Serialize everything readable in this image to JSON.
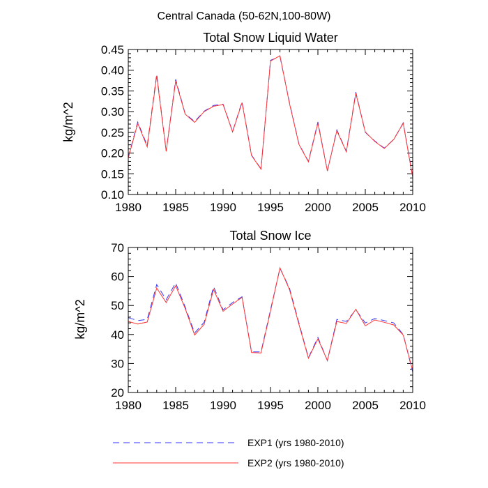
{
  "figure": {
    "suptitle": "Central Canada (50-62N,100-80W)"
  },
  "chart_data": [
    {
      "type": "line",
      "title": "Total Snow Liquid Water",
      "xlabel": "",
      "ylabel": "kg/m^2",
      "xlim": [
        1980,
        2010
      ],
      "ylim": [
        0.1,
        0.45
      ],
      "xticks": [
        "1980",
        "1985",
        "1990",
        "1995",
        "2000",
        "2005",
        "2010"
      ],
      "yticks": [
        "0.10",
        "0.15",
        "0.20",
        "0.25",
        "0.30",
        "0.35",
        "0.40",
        "0.45"
      ],
      "x": [
        1980,
        1981,
        1982,
        1983,
        1984,
        1985,
        1986,
        1987,
        1988,
        1989,
        1990,
        1991,
        1992,
        1993,
        1994,
        1995,
        1996,
        1997,
        1998,
        1999,
        2000,
        2001,
        2002,
        2003,
        2004,
        2005,
        2006,
        2007,
        2008,
        2009,
        2010
      ],
      "series": [
        {
          "name": "EXP1 (yrs 1980-2010)",
          "color": "#3333ff",
          "dash": "dashed",
          "values": [
            0.19,
            0.275,
            0.218,
            0.391,
            0.205,
            0.378,
            0.295,
            0.276,
            0.301,
            0.315,
            0.318,
            0.252,
            0.324,
            0.195,
            0.162,
            0.424,
            0.433,
            0.322,
            0.222,
            0.18,
            0.275,
            0.157,
            0.256,
            0.204,
            0.347,
            0.25,
            0.229,
            0.212,
            0.233,
            0.273,
            0.142
          ]
        },
        {
          "name": "EXP2 (yrs 1980-2010)",
          "color": "#ff3333",
          "dash": "solid",
          "values": [
            0.188,
            0.272,
            0.215,
            0.386,
            0.204,
            0.374,
            0.294,
            0.274,
            0.3,
            0.313,
            0.317,
            0.251,
            0.322,
            0.194,
            0.161,
            0.422,
            0.435,
            0.32,
            0.221,
            0.179,
            0.272,
            0.157,
            0.254,
            0.203,
            0.344,
            0.251,
            0.228,
            0.211,
            0.233,
            0.272,
            0.141
          ]
        }
      ]
    },
    {
      "type": "line",
      "title": "Total Snow Ice",
      "xlabel": "",
      "ylabel": "kg/m^2",
      "xlim": [
        1980,
        2010
      ],
      "ylim": [
        20,
        70
      ],
      "xticks": [
        "1980",
        "1985",
        "1990",
        "1995",
        "2000",
        "2005",
        "2010"
      ],
      "yticks": [
        "20",
        "30",
        "40",
        "50",
        "60",
        "70"
      ],
      "x": [
        1980,
        1981,
        1982,
        1983,
        1984,
        1985,
        1986,
        1987,
        1988,
        1989,
        1990,
        1991,
        1992,
        1993,
        1994,
        1995,
        1996,
        1997,
        1998,
        1999,
        2000,
        2001,
        2002,
        2003,
        2004,
        2005,
        2006,
        2007,
        2008,
        2009,
        2010
      ],
      "series": [
        {
          "name": "EXP1 (yrs 1980-2010)",
          "color": "#3333ff",
          "dash": "dashed",
          "values": [
            45.8,
            44.8,
            45.2,
            57.2,
            52.0,
            57.8,
            49.5,
            40.5,
            44.2,
            56.5,
            48.5,
            51.0,
            53.0,
            34.0,
            34.0,
            48.5,
            62.8,
            56.0,
            44.0,
            32.0,
            39.0,
            31.0,
            45.2,
            44.5,
            48.5,
            44.0,
            45.5,
            44.8,
            44.0,
            40.0,
            27.0
          ]
        },
        {
          "name": "EXP2 (yrs 1980-2010)",
          "color": "#ff3333",
          "dash": "solid",
          "values": [
            44.5,
            43.6,
            44.3,
            56.0,
            51.0,
            56.8,
            49.0,
            39.8,
            43.5,
            55.5,
            48.0,
            50.5,
            52.8,
            33.8,
            33.6,
            48.0,
            63.0,
            55.5,
            43.5,
            31.8,
            38.5,
            31.0,
            44.5,
            43.8,
            48.7,
            43.0,
            45.0,
            44.2,
            43.3,
            39.8,
            27.5
          ]
        }
      ]
    }
  ]
}
